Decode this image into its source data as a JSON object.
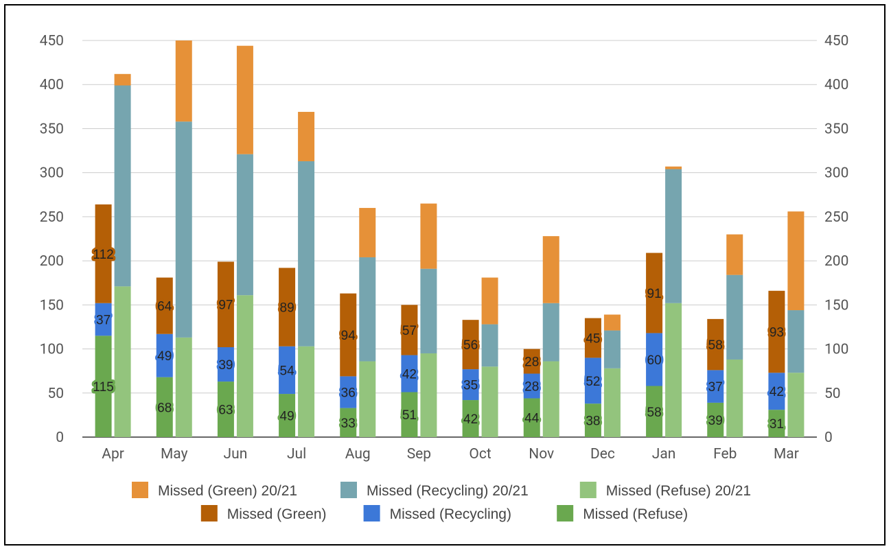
{
  "chart_data": {
    "type": "bar",
    "categories": [
      "Apr",
      "May",
      "Jun",
      "Jul",
      "Aug",
      "Sep",
      "Oct",
      "Nov",
      "Dec",
      "Jan",
      "Feb",
      "Mar"
    ],
    "ylim": [
      0,
      450
    ],
    "yticks": [
      0,
      50,
      100,
      150,
      200,
      250,
      300,
      350,
      400,
      450
    ],
    "grid": true,
    "legend_position": "bottom",
    "stacks": [
      {
        "stack": "current",
        "series": [
          {
            "name": "Missed (Refuse)",
            "color": "#6aa84f",
            "label_color": "#6aa84f",
            "values": [
              115,
              68,
              63,
              49,
              33,
              51,
              42,
              44,
              38,
              58,
              39,
              31
            ]
          },
          {
            "name": "Missed (Recycling)",
            "color": "#3c78d8",
            "label_color": "#3c78d8",
            "values": [
              37,
              49,
              39,
              54,
              36,
              42,
              35,
              28,
              52,
              60,
              37,
              42
            ]
          },
          {
            "name": "Missed (Green)",
            "color": "#b45f06",
            "label_color": "#b45f06",
            "values": [
              112,
              64,
              97,
              89,
              94,
              57,
              56,
              28,
              45,
              91,
              58,
              93
            ]
          }
        ]
      },
      {
        "stack": "previous",
        "series": [
          {
            "name": "Missed (Refuse) 20/21",
            "color": "#93c47d",
            "values": [
              171,
              113,
              161,
              103,
              86,
              95,
              80,
              86,
              78,
              152,
              88,
              73
            ]
          },
          {
            "name": "Missed (Recycling) 20/21",
            "color": "#76a5af",
            "values": [
              228,
              245,
              160,
              210,
              118,
              96,
              48,
              66,
              43,
              152,
              96,
              71
            ]
          },
          {
            "name": "Missed (Green) 20/21",
            "color": "#e69138",
            "values": [
              13,
              92,
              123,
              56,
              56,
              74,
              53,
              76,
              18,
              3,
              46,
              112
            ]
          }
        ]
      }
    ],
    "legend": [
      [
        {
          "name": "Missed (Green) 20/21",
          "color": "#e69138"
        },
        {
          "name": "Missed (Recycling) 20/21",
          "color": "#76a5af"
        },
        {
          "name": "Missed (Refuse) 20/21",
          "color": "#93c47d"
        }
      ],
      [
        {
          "name": "Missed (Green)",
          "color": "#b45f06"
        },
        {
          "name": "Missed (Recycling)",
          "color": "#3c78d8"
        },
        {
          "name": "Missed (Refuse)",
          "color": "#6aa84f"
        }
      ]
    ]
  }
}
